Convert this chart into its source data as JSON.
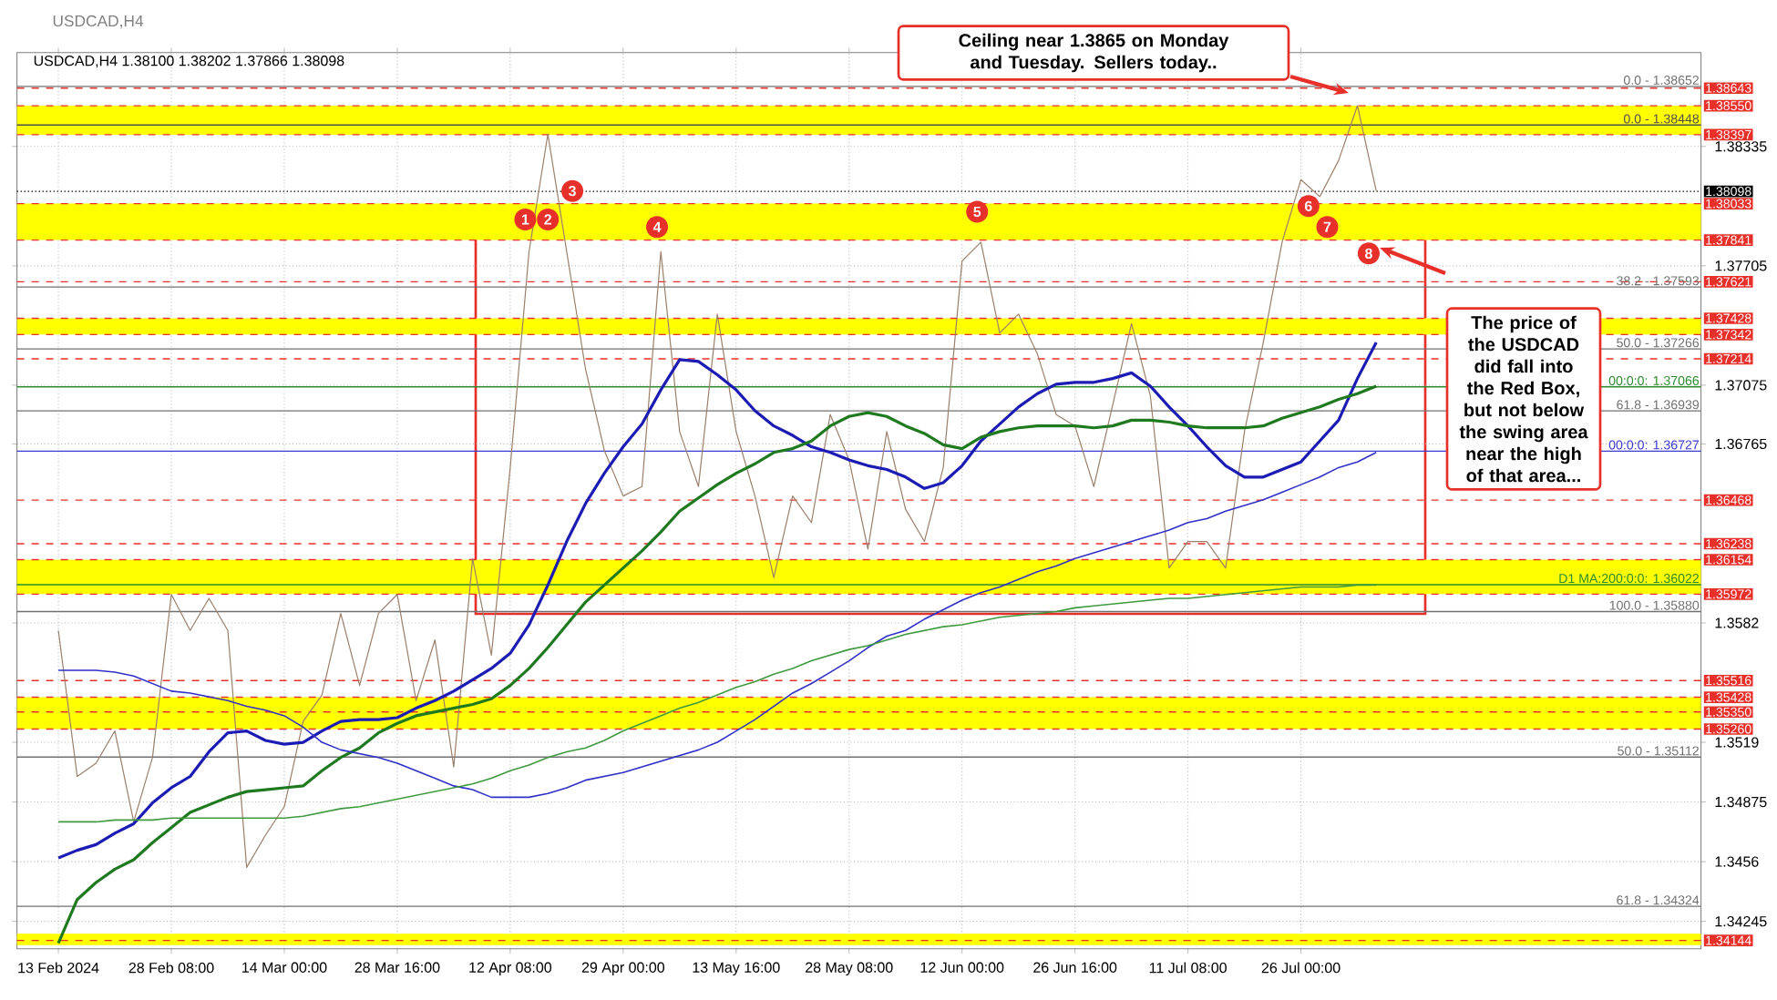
{
  "chart_data": {
    "type": "line",
    "title": "USDCAD,H4",
    "subtitle": "USDCAD,H4  1.38100 1.38202 1.37866 1.38098",
    "categories": [
      "13 Feb 2024",
      null,
      null,
      null,
      null,
      null,
      "28 Feb 08:00",
      null,
      null,
      null,
      null,
      null,
      "14 Mar 00:00",
      null,
      null,
      null,
      null,
      null,
      "28 Mar 16:00",
      null,
      null,
      null,
      null,
      null,
      "12 Apr 08:00",
      null,
      null,
      null,
      null,
      null,
      "29 Apr 00:00",
      null,
      null,
      null,
      null,
      null,
      "13 May 16:00",
      null,
      null,
      null,
      null,
      null,
      "28 May 08:00",
      null,
      null,
      null,
      null,
      null,
      "12 Jun 00:00",
      null,
      null,
      null,
      null,
      null,
      "26 Jun 16:00",
      null,
      null,
      null,
      null,
      null,
      "11 Jul 08:00",
      null,
      null,
      null,
      null,
      null,
      "26 Jul 00:00",
      null,
      null,
      null,
      null,
      null,
      null,
      null,
      null,
      null,
      null,
      null,
      null,
      null,
      null,
      null,
      null,
      null,
      null,
      null,
      null,
      null
    ],
    "series": [
      {
        "color": "#9a7f6a",
        "values": [
          1.3578,
          1.3501,
          1.3508,
          1.3525,
          1.3477,
          1.3511,
          1.3597,
          1.3578,
          1.3595,
          1.3578,
          1.3453,
          1.347,
          1.3485,
          1.353,
          1.3544,
          1.3587,
          1.3549,
          1.3587,
          1.3597,
          1.3541,
          1.3573,
          1.3506,
          1.3616,
          1.3565,
          1.3664,
          1.3778,
          1.384,
          1.3778,
          1.3716,
          1.3673,
          1.3649,
          1.3654,
          1.3778,
          1.3683,
          1.3654,
          1.3745,
          1.3683,
          1.3649,
          1.3606,
          1.3649,
          1.3635,
          1.3692,
          1.3668,
          1.3621,
          1.3683,
          1.3642,
          1.3625,
          1.3664,
          1.3773,
          1.3783,
          1.3735,
          1.3745,
          1.3724,
          1.3692,
          1.3686,
          1.3654,
          1.3697,
          1.374,
          1.3702,
          1.3611,
          1.3625,
          1.3625,
          1.3611,
          1.3683,
          1.373,
          1.3783,
          1.3816,
          1.3807,
          1.3826,
          1.3855,
          1.381,
          null,
          null,
          null,
          null,
          null,
          null,
          null,
          null,
          null,
          null,
          null,
          null,
          null,
          null,
          null,
          null,
          null
        ]
      },
      {
        "color": "#1c1cb4",
        "values": [
          1.3458,
          1.3462,
          1.3465,
          1.3471,
          1.3476,
          1.3487,
          1.3495,
          1.3501,
          1.3514,
          1.3524,
          1.3525,
          1.352,
          1.3518,
          1.3519,
          1.3525,
          1.353,
          1.3531,
          1.3531,
          1.3532,
          1.3537,
          1.3541,
          1.3546,
          1.3552,
          1.3558,
          1.3566,
          1.3581,
          1.3602,
          1.3625,
          1.3645,
          1.3661,
          1.3675,
          1.3687,
          1.3705,
          1.3721,
          1.372,
          1.3713,
          1.3705,
          1.3694,
          1.3686,
          1.3681,
          1.3675,
          1.3672,
          1.3668,
          1.3665,
          1.3663,
          1.3659,
          1.3653,
          1.3656,
          1.3665,
          1.3678,
          1.3687,
          1.3696,
          1.3703,
          1.3708,
          1.3709,
          1.3709,
          1.3711,
          1.3714,
          1.3707,
          1.3696,
          1.3686,
          1.3675,
          1.3665,
          1.3659,
          1.3659,
          1.3663,
          1.3667,
          1.3678,
          1.3689,
          1.3711,
          1.373,
          null,
          null,
          null,
          null,
          null,
          null,
          null,
          null,
          null,
          null,
          null,
          null,
          null,
          null,
          null,
          null,
          null
        ]
      },
      {
        "color": "#1f7a1f",
        "values": [
          1.3413,
          1.3436,
          1.3445,
          1.3452,
          1.3457,
          1.3466,
          1.3474,
          1.3482,
          1.3486,
          1.349,
          1.3493,
          1.3494,
          1.3495,
          1.3496,
          1.3504,
          1.3511,
          1.3516,
          1.3524,
          1.3529,
          1.3533,
          1.3535,
          1.3537,
          1.3539,
          1.3542,
          1.3549,
          1.3558,
          1.3569,
          1.3581,
          1.3593,
          1.3602,
          1.3611,
          1.362,
          1.363,
          1.3641,
          1.3648,
          1.3655,
          1.3661,
          1.3666,
          1.3672,
          1.3674,
          1.3678,
          1.3686,
          1.3691,
          1.3693,
          1.3691,
          1.3686,
          1.3682,
          1.3676,
          1.3674,
          1.368,
          1.3683,
          1.3685,
          1.3686,
          1.3686,
          1.3686,
          1.3685,
          1.3686,
          1.3689,
          1.3689,
          1.3688,
          1.3686,
          1.3685,
          1.3685,
          1.3685,
          1.3686,
          1.369,
          1.3693,
          1.3696,
          1.37,
          1.3703,
          1.3707,
          null,
          null,
          null,
          null,
          null,
          null,
          null,
          null,
          null,
          null,
          null,
          null,
          null,
          null,
          null,
          null,
          null
        ]
      },
      {
        "color": "#3030c8",
        "values": [
          1.3557,
          1.3557,
          1.3557,
          1.3556,
          1.3554,
          1.355,
          1.3546,
          1.3545,
          1.3543,
          1.3541,
          1.3538,
          1.3536,
          1.3533,
          1.3527,
          1.3519,
          1.3515,
          1.3513,
          1.3511,
          1.3508,
          1.3504,
          1.35,
          1.3496,
          1.3494,
          1.349,
          1.349,
          1.349,
          1.3492,
          1.3495,
          1.3499,
          1.3501,
          1.3503,
          1.3506,
          1.3509,
          1.3512,
          1.3515,
          1.3519,
          1.3525,
          1.3531,
          1.3538,
          1.3545,
          1.355,
          1.3556,
          1.3562,
          1.3569,
          1.3575,
          1.3578,
          1.3584,
          1.3589,
          1.3594,
          1.3598,
          1.3601,
          1.3605,
          1.3609,
          1.3612,
          1.3616,
          1.3619,
          1.3622,
          1.3625,
          1.3628,
          1.3631,
          1.3635,
          1.3637,
          1.3641,
          1.3644,
          1.3647,
          1.3651,
          1.3655,
          1.3659,
          1.3664,
          1.3667,
          1.3672,
          null,
          null,
          null,
          null,
          null,
          null,
          null,
          null,
          null,
          null,
          null,
          null,
          null,
          null,
          null,
          null,
          null
        ]
      },
      {
        "color": "#3f9a3f",
        "values": [
          1.3477,
          1.3477,
          1.3477,
          1.3478,
          1.3478,
          1.3478,
          1.3479,
          1.3479,
          1.3479,
          1.3479,
          1.3479,
          1.3479,
          1.3479,
          1.348,
          1.3482,
          1.3484,
          1.3485,
          1.3487,
          1.3489,
          1.3491,
          1.3493,
          1.3495,
          1.3497,
          1.35,
          1.3504,
          1.3507,
          1.3511,
          1.3514,
          1.3516,
          1.352,
          1.3525,
          1.3529,
          1.3533,
          1.3537,
          1.354,
          1.3544,
          1.3548,
          1.3551,
          1.3555,
          1.3558,
          1.3562,
          1.3565,
          1.3568,
          1.357,
          1.3573,
          1.3576,
          1.3578,
          1.358,
          1.3581,
          1.3583,
          1.3585,
          1.3586,
          1.3587,
          1.3588,
          1.359,
          1.3591,
          1.3592,
          1.3593,
          1.3594,
          1.3595,
          1.3595,
          1.3596,
          1.3597,
          1.3598,
          1.3599,
          1.36,
          1.3601,
          1.3601,
          1.3601,
          1.3602,
          1.3602,
          null,
          null,
          null,
          null,
          null,
          null,
          null,
          null,
          null,
          null,
          null,
          null,
          null,
          null,
          null,
          null,
          null
        ]
      }
    ],
    "ylim": [
      1.341,
      1.3883
    ],
    "yticks": [
      1.34245,
      1.3456,
      1.34875,
      1.3519,
      1.3582,
      1.36765,
      1.37075,
      1.37705,
      1.38335
    ],
    "grid": true,
    "bands": [
      {
        "axis": "y",
        "from": 1.38397,
        "to": 1.3855,
        "color": "#ffff00"
      },
      {
        "axis": "y",
        "from": 1.37841,
        "to": 1.38033,
        "color": "#ffff00"
      },
      {
        "axis": "y",
        "from": 1.37342,
        "to": 1.37428,
        "color": "#ffff00"
      },
      {
        "axis": "y",
        "from": 1.35972,
        "to": 1.36154,
        "color": "#ffff00"
      },
      {
        "axis": "y",
        "from": 1.3526,
        "to": 1.35428,
        "color": "#ffff00"
      },
      {
        "axis": "y",
        "from": 1.3412,
        "to": 1.3418,
        "color": "#ffff00"
      }
    ],
    "ref_lines": [
      {
        "axis": "y",
        "value": 1.38643,
        "label": "1.38643",
        "color": "#e8302a",
        "line_style": "dashed"
      },
      {
        "axis": "y",
        "value": 1.3855,
        "label": "1.38550",
        "color": "#e8302a",
        "line_style": "dashed"
      },
      {
        "axis": "y",
        "value": 1.38397,
        "label": "1.38397",
        "color": "#e8302a",
        "line_style": "dashed"
      },
      {
        "axis": "y",
        "value": 1.38098,
        "label": "1.38098",
        "color": "#000000",
        "line_style": "dotted"
      },
      {
        "axis": "y",
        "value": 1.38033,
        "label": "1.38033",
        "color": "#e8302a",
        "line_style": "dashed"
      },
      {
        "axis": "y",
        "value": 1.37841,
        "label": "1.37841",
        "color": "#e8302a",
        "line_style": "dashed"
      },
      {
        "axis": "y",
        "value": 1.37621,
        "label": "1.37621",
        "color": "#e8302a",
        "line_style": "dashed"
      },
      {
        "axis": "y",
        "value": 1.37428,
        "label": "1.37428",
        "color": "#e8302a",
        "line_style": "dashed"
      },
      {
        "axis": "y",
        "value": 1.37342,
        "label": "1.37342",
        "color": "#e8302a",
        "line_style": "dashed"
      },
      {
        "axis": "y",
        "value": 1.37214,
        "label": "1.37214",
        "color": "#e8302a",
        "line_style": "dashed"
      },
      {
        "axis": "y",
        "value": 1.36468,
        "label": "1.36468",
        "color": "#e8302a",
        "line_style": "dashed"
      },
      {
        "axis": "y",
        "value": 1.36238,
        "label": "1.36238",
        "color": "#e8302a",
        "line_style": "dashed"
      },
      {
        "axis": "y",
        "value": 1.36154,
        "label": "1.36154",
        "color": "#e8302a",
        "line_style": "dashed"
      },
      {
        "axis": "y",
        "value": 1.35972,
        "label": "1.35972",
        "color": "#e8302a",
        "line_style": "dashed"
      },
      {
        "axis": "y",
        "value": 1.35516,
        "label": "1.35516",
        "color": "#e8302a",
        "line_style": "dashed"
      },
      {
        "axis": "y",
        "value": 1.35428,
        "label": "1.35428",
        "color": "#e8302a",
        "line_style": "dashed"
      },
      {
        "axis": "y",
        "value": 1.3535,
        "label": "1.35350",
        "color": "#e8302a",
        "line_style": "dashed"
      },
      {
        "axis": "y",
        "value": 1.3526,
        "label": "1.35260",
        "color": "#e8302a",
        "line_style": "dashed"
      },
      {
        "axis": "y",
        "value": 1.34144,
        "label": "1.34144",
        "color": "#e8302a",
        "line_style": "dashed"
      },
      {
        "axis": "y",
        "value": 1.38652,
        "label": "1.38652",
        "color": "#707070",
        "line_style": "solid"
      },
      {
        "axis": "y",
        "value": 1.38448,
        "label": "1.38448",
        "color": "#505050",
        "line_style": "solid"
      },
      {
        "axis": "y",
        "value": 1.37593,
        "label": "1.37593",
        "color": "#707070",
        "line_style": "solid"
      },
      {
        "axis": "y",
        "value": 1.37266,
        "label": "1.37266",
        "color": "#707070",
        "line_style": "solid"
      },
      {
        "axis": "y",
        "value": 1.37066,
        "label": "00:0:0: 1.37066",
        "color": "#2e8b2e",
        "line_style": "solid"
      },
      {
        "axis": "y",
        "value": 1.36939,
        "label": "1.36939",
        "color": "#707070",
        "line_style": "solid"
      },
      {
        "axis": "y",
        "value": 1.36727,
        "label": "00:0:0: 1.36727",
        "color": "#3b3bd0",
        "line_style": "solid"
      },
      {
        "axis": "y",
        "value": 1.36022,
        "label": "D1 MA:200:0:0: 1.36022",
        "color": "#2e8b2e",
        "line_style": "solid"
      },
      {
        "axis": "y",
        "value": 1.3588,
        "label": "1.35880",
        "color": "#707070",
        "line_style": "solid"
      },
      {
        "axis": "y",
        "value": 1.35112,
        "label": "1.35112",
        "color": "#707070",
        "line_style": "solid"
      },
      {
        "axis": "y",
        "value": 1.34324,
        "label": "1.34324",
        "color": "#707070",
        "line_style": "solid"
      }
    ],
    "annotations": [
      "Ceiling near 1.3865 on Monday and Tuesday.  Sellers today..",
      "The price of the USDCAD did fall into the Red Box, but not below the swing area near the high of that area...",
      {
        "text": "1",
        "y": 1.3795
      },
      {
        "text": "2",
        "y": 1.3795
      },
      {
        "text": "3",
        "y": 1.381
      },
      {
        "text": "4",
        "y": 1.3791
      },
      {
        "text": "5",
        "y": 1.3799
      },
      {
        "text": "6",
        "y": 1.3802
      },
      {
        "text": "7",
        "y": 1.3791
      },
      {
        "text": "8",
        "y": 1.3777
      },
      {
        "text": "0.0 -",
        "y": 1.38652
      },
      {
        "text": "0.0 -",
        "y": 1.38448
      },
      {
        "text": "38.2 -",
        "y": 1.37593
      },
      {
        "text": "50.0 -",
        "y": 1.37266
      },
      {
        "text": "61.8 -",
        "y": 1.36939
      },
      {
        "text": "100.0 -",
        "y": 1.3588
      },
      {
        "text": "50.0 -",
        "y": 1.35112
      },
      {
        "text": "61.8 -",
        "y": 1.34324
      }
    ]
  }
}
